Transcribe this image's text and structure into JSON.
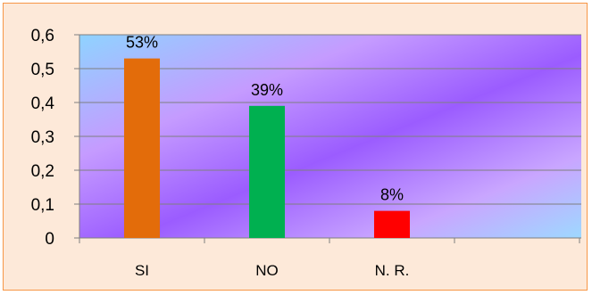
{
  "chart_data": {
    "type": "bar",
    "categories": [
      "SI",
      "NO",
      "N. R."
    ],
    "values": [
      0.53,
      0.39,
      0.08
    ],
    "data_labels": [
      "53%",
      "39%",
      "8%"
    ],
    "bar_colors": [
      "#e36c0a",
      "#00b050",
      "#ff0000"
    ],
    "ylim": [
      0,
      0.6
    ],
    "yticks": [
      "0",
      "0,1",
      "0,2",
      "0,3",
      "0,4",
      "0,5",
      "0,6"
    ],
    "grid": true,
    "title": "",
    "xlabel": "",
    "ylabel": ""
  },
  "colors": {
    "frame_background": "#fde9d9",
    "frame_border": "#f79646",
    "plot_gradient": [
      "#8fd3ff",
      "#c59bff",
      "#9b5cff",
      "#c9a6ff",
      "#9ed8ff"
    ]
  }
}
